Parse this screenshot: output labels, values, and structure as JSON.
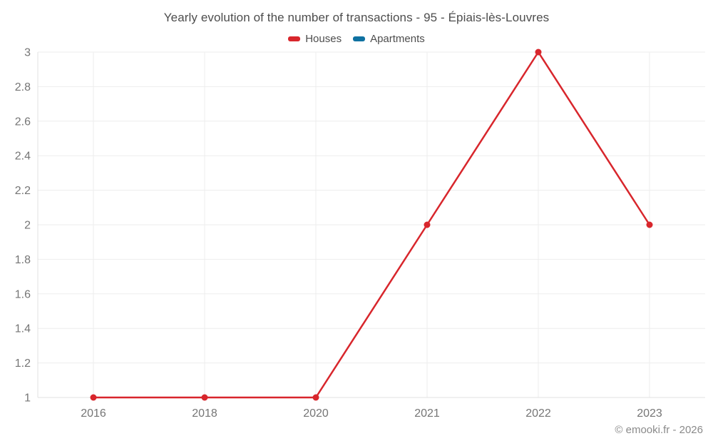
{
  "title": "Yearly evolution of the number of transactions - 95 - Épiais-lès-Louvres",
  "legend": {
    "items": [
      {
        "label": "Houses",
        "color": "#d8262c"
      },
      {
        "label": "Apartments",
        "color": "#0f71a1"
      }
    ]
  },
  "footer": {
    "credit": "© emooki.fr - 2026"
  },
  "chart_data": {
    "type": "line",
    "title": "Yearly evolution of the number of transactions - 95 - Épiais-lès-Louvres",
    "categories": [
      "2016",
      "2018",
      "2020",
      "2021",
      "2022",
      "2023"
    ],
    "series": [
      {
        "name": "Houses",
        "color": "#d8262c",
        "values": [
          1,
          1,
          1,
          2,
          3,
          2
        ]
      },
      {
        "name": "Apartments",
        "color": "#0f71a1",
        "values": []
      }
    ],
    "xlabel": "",
    "ylabel": "",
    "ylim": [
      1,
      3
    ],
    "yticks": [
      "1",
      "1.2",
      "1.4",
      "1.6",
      "1.8",
      "2",
      "2.2",
      "2.4",
      "2.6",
      "2.8",
      "3"
    ],
    "grid": true,
    "legend_position": "top",
    "colors": {
      "grid_line": "#ededed",
      "axis_line": "#e0e0e0",
      "tick_label": "#757575",
      "title_text": "#4d4d4d"
    }
  }
}
